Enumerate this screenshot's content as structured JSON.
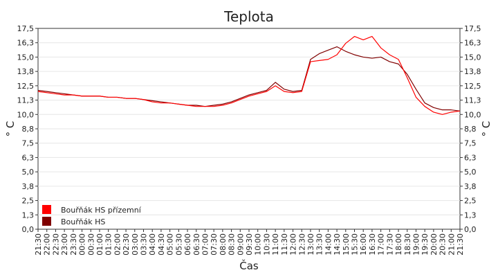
{
  "chart_data": {
    "type": "line",
    "title": "Teplota",
    "xlabel": "Čas",
    "ylabel": "° C",
    "ylim": [
      0,
      17.5
    ],
    "y_ticks": [
      "0,0",
      "1,3",
      "2,5",
      "3,8",
      "5,0",
      "6,3",
      "7,5",
      "8,8",
      "10,0",
      "11,3",
      "12,5",
      "13,8",
      "15,0",
      "16,3",
      "17,5"
    ],
    "x_ticks": [
      "21:30",
      "22:00",
      "22:30",
      "23:00",
      "23:30",
      "00:00",
      "00:30",
      "01:00",
      "01:30",
      "02:00",
      "02:30",
      "03:00",
      "03:30",
      "04:00",
      "04:30",
      "05:00",
      "05:30",
      "06:00",
      "06:30",
      "07:00",
      "07:30",
      "08:00",
      "08:30",
      "09:00",
      "09:30",
      "10:00",
      "10:30",
      "11:00",
      "11:30",
      "12:00",
      "12:30",
      "13:00",
      "13:30",
      "14:00",
      "14:30",
      "15:00",
      "15:30",
      "16:00",
      "16:30",
      "17:00",
      "17:30",
      "18:00",
      "18:30",
      "19:00",
      "19:30",
      "20:00",
      "20:30",
      "21:00",
      "21:30"
    ],
    "grid": true,
    "legend_position": "bottom-left",
    "series": [
      {
        "name": "Bouřňák HS přízemní",
        "color": "#ff0000",
        "x": [
          "21:30",
          "22:00",
          "22:30",
          "23:00",
          "23:30",
          "00:00",
          "00:30",
          "01:00",
          "01:30",
          "02:00",
          "02:30",
          "03:00",
          "03:30",
          "04:00",
          "04:30",
          "05:00",
          "05:30",
          "06:00",
          "06:30",
          "07:00",
          "07:30",
          "08:00",
          "08:30",
          "09:00",
          "09:30",
          "10:00",
          "10:30",
          "11:00",
          "11:30",
          "12:00",
          "12:30",
          "13:00",
          "13:30",
          "14:00",
          "14:30",
          "15:00",
          "15:30",
          "16:00",
          "16:30",
          "17:00",
          "17:30",
          "18:00",
          "18:30",
          "19:00",
          "19:30",
          "20:00",
          "20:30",
          "21:00",
          "21:30"
        ],
        "values": [
          12.0,
          11.9,
          11.8,
          11.7,
          11.7,
          11.6,
          11.6,
          11.6,
          11.5,
          11.5,
          11.4,
          11.4,
          11.3,
          11.1,
          11.0,
          11.0,
          10.9,
          10.8,
          10.7,
          10.7,
          10.7,
          10.8,
          11.0,
          11.3,
          11.6,
          11.8,
          12.0,
          12.5,
          12.0,
          11.9,
          12.0,
          14.6,
          14.7,
          14.8,
          15.2,
          16.2,
          16.8,
          16.5,
          16.8,
          15.8,
          15.2,
          14.8,
          13.2,
          11.5,
          10.7,
          10.2,
          10.0,
          10.2,
          10.3
        ]
      },
      {
        "name": "Bouřňák HS",
        "color": "#800000",
        "x": [
          "21:30",
          "22:00",
          "22:30",
          "23:00",
          "23:30",
          "00:00",
          "00:30",
          "01:00",
          "01:30",
          "02:00",
          "02:30",
          "03:00",
          "03:30",
          "04:00",
          "04:30",
          "05:00",
          "05:30",
          "06:00",
          "06:30",
          "07:00",
          "07:30",
          "08:00",
          "08:30",
          "09:00",
          "09:30",
          "10:00",
          "10:30",
          "11:00",
          "11:30",
          "12:00",
          "12:30",
          "13:00",
          "13:30",
          "14:00",
          "14:30",
          "15:00",
          "15:30",
          "16:00",
          "16:30",
          "17:00",
          "17:30",
          "18:00",
          "18:30",
          "19:00",
          "19:30",
          "20:00",
          "20:30",
          "21:00",
          "21:30"
        ],
        "values": [
          12.1,
          12.0,
          11.9,
          11.8,
          11.7,
          11.6,
          11.6,
          11.6,
          11.5,
          11.5,
          11.4,
          11.4,
          11.3,
          11.2,
          11.1,
          11.0,
          10.9,
          10.8,
          10.8,
          10.7,
          10.8,
          10.9,
          11.1,
          11.4,
          11.7,
          11.9,
          12.1,
          12.8,
          12.2,
          12.0,
          12.1,
          14.8,
          15.3,
          15.6,
          15.9,
          15.5,
          15.2,
          15.0,
          14.9,
          15.0,
          14.6,
          14.4,
          13.5,
          12.2,
          11.0,
          10.6,
          10.4,
          10.4,
          10.3
        ]
      }
    ]
  }
}
